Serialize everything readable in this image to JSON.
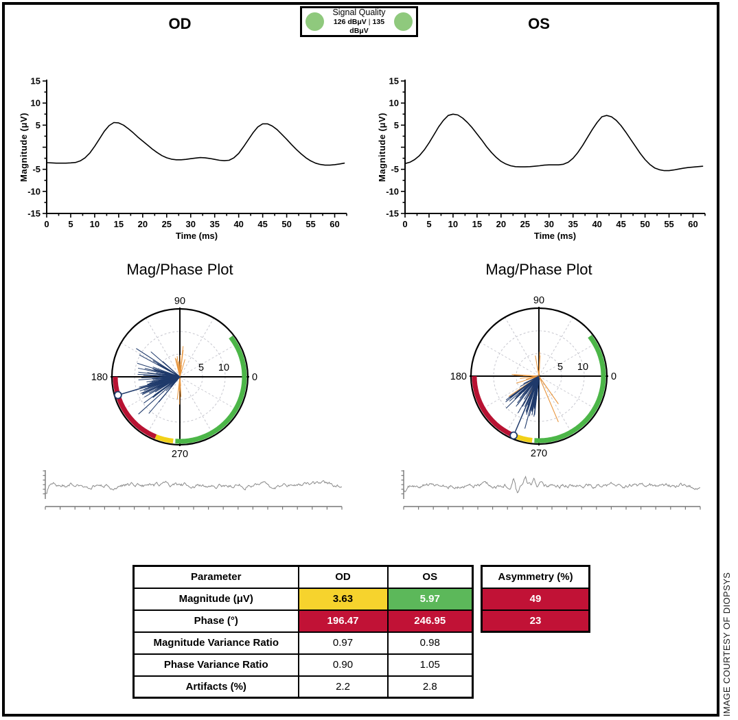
{
  "page": {
    "od_label": "OD",
    "os_label": "OS",
    "credit": "IMAGE COURTESY OF DIOPSYS"
  },
  "signal_quality": {
    "title": "Signal Quality",
    "od_value": "126 dBμV",
    "separator": "|",
    "os_value": "135 dBμV",
    "indicator_color": "#8fc97d"
  },
  "polar_titles": {
    "od": "Mag/Phase Plot",
    "os": "Mag/Phase Plot"
  },
  "colors": {
    "axis_black": "#000000",
    "navy_spike": "#1f3a6b",
    "orange_spike": "#e8953c",
    "arc_green": "#4cb648",
    "arc_red": "#b81232",
    "arc_yellow": "#f2d118",
    "grid_gray": "#c6c6ce",
    "noise_gray": "#8a8a8a",
    "noise_axis": "#777777",
    "cell_yellow": "#f6d32d",
    "cell_green": "#5cb85a",
    "cell_red": "#c11236"
  },
  "chart_data": [
    {
      "id": "od_waveform",
      "type": "line",
      "eye": "OD",
      "xlabel": "Time (ms)",
      "ylabel": "Magnitude (μV)",
      "xlim": [
        0,
        62.5
      ],
      "ylim": [
        -15,
        15
      ],
      "x_major_step": 5,
      "x_minor_step": 2.5,
      "y_major_step": 5,
      "y_minor_step": 2.5,
      "x_start": 0,
      "x_step": 1,
      "values": [
        -3.5,
        -3.55,
        -3.6,
        -3.6,
        -3.6,
        -3.55,
        -3.45,
        -3.1,
        -2.4,
        -1.3,
        0.2,
        1.9,
        3.6,
        4.9,
        5.6,
        5.5,
        5.0,
        4.2,
        3.3,
        2.3,
        1.4,
        0.5,
        -0.4,
        -1.2,
        -1.9,
        -2.4,
        -2.7,
        -2.85,
        -2.85,
        -2.75,
        -2.6,
        -2.45,
        -2.35,
        -2.4,
        -2.55,
        -2.75,
        -2.95,
        -3.05,
        -2.95,
        -2.4,
        -1.4,
        0.1,
        1.7,
        3.3,
        4.6,
        5.3,
        5.3,
        4.8,
        4.0,
        2.9,
        1.8,
        0.6,
        -0.5,
        -1.5,
        -2.4,
        -3.1,
        -3.6,
        -3.9,
        -4.05,
        -4.05,
        -3.95,
        -3.8,
        -3.6
      ]
    },
    {
      "id": "os_waveform",
      "type": "line",
      "eye": "OS",
      "xlabel": "Time (ms)",
      "ylabel": "Magnitude (μV)",
      "xlim": [
        0,
        62.5
      ],
      "ylim": [
        -15,
        15
      ],
      "x_major_step": 5,
      "x_minor_step": 2.5,
      "y_major_step": 5,
      "y_minor_step": 2.5,
      "x_start": 0,
      "x_step": 1,
      "values": [
        -3.7,
        -3.4,
        -2.8,
        -1.9,
        -0.6,
        1.0,
        2.8,
        4.6,
        6.1,
        7.2,
        7.5,
        7.3,
        6.6,
        5.6,
        4.4,
        3.0,
        1.6,
        0.1,
        -1.2,
        -2.3,
        -3.2,
        -3.8,
        -4.2,
        -4.4,
        -4.45,
        -4.45,
        -4.4,
        -4.3,
        -4.2,
        -4.05,
        -4.0,
        -4.0,
        -4.0,
        -3.85,
        -3.4,
        -2.5,
        -1.2,
        0.4,
        2.2,
        4.0,
        5.6,
        6.9,
        7.2,
        6.9,
        6.1,
        4.9,
        3.4,
        1.8,
        0.2,
        -1.4,
        -2.8,
        -3.9,
        -4.7,
        -5.1,
        -5.3,
        -5.3,
        -5.15,
        -4.95,
        -4.75,
        -4.6,
        -4.5,
        -4.4,
        -4.3
      ]
    },
    {
      "id": "od_polar",
      "type": "polar",
      "eye": "OD",
      "title": "Mag/Phase Plot",
      "rmax": 15,
      "radius_ticks": [
        5,
        10
      ],
      "angle_labels": {
        "right": "0",
        "top": "90",
        "left": "180",
        "bottom": "270"
      },
      "marker": {
        "angle_deg": 196.47,
        "radius": 15
      },
      "arcs": [
        {
          "color_key": "arc_red",
          "start_deg": 180,
          "end_deg": 248
        },
        {
          "color_key": "arc_yellow",
          "start_deg": 248,
          "end_deg": 266
        },
        {
          "color_key": "arc_green",
          "start_deg": 266,
          "end_deg": 398
        }
      ],
      "seed": 7,
      "blue_clusters": [
        {
          "mean": 190,
          "spread": 30,
          "count": 85,
          "rmin": 1.5,
          "rmax": 9.5
        },
        {
          "mean": 150,
          "spread": 15,
          "count": 8,
          "rmin": 4,
          "rmax": 11.5
        },
        {
          "mean": 215,
          "spread": 18,
          "count": 10,
          "rmin": 3,
          "rmax": 11
        }
      ],
      "orange_clusters": [
        {
          "mean": 88,
          "spread": 10,
          "count": 12,
          "rmin": 1.5,
          "rmax": 7
        },
        {
          "mean": 95,
          "spread": 25,
          "count": 6,
          "rmin": 1,
          "rmax": 4.5
        },
        {
          "mean": 270,
          "spread": 8,
          "count": 7,
          "rmin": 2,
          "rmax": 6.5
        }
      ],
      "blue_extras": [
        {
          "angle": 147,
          "r": 11.5
        },
        {
          "angle": 222,
          "r": 12.3
        }
      ],
      "orange_extras": []
    },
    {
      "id": "os_polar",
      "type": "polar",
      "eye": "OS",
      "title": "Mag/Phase Plot",
      "rmax": 15,
      "radius_ticks": [
        5,
        10
      ],
      "angle_labels": {
        "right": "0",
        "top": "90",
        "left": "180",
        "bottom": "270"
      },
      "marker": {
        "angle_deg": 246.95,
        "radius": 15
      },
      "arcs": [
        {
          "color_key": "arc_red",
          "start_deg": 180,
          "end_deg": 248
        },
        {
          "color_key": "arc_yellow",
          "start_deg": 248,
          "end_deg": 266
        },
        {
          "color_key": "arc_green",
          "start_deg": 266,
          "end_deg": 398
        }
      ],
      "seed": 13,
      "blue_clusters": [
        {
          "mean": 240,
          "spread": 25,
          "count": 90,
          "rmin": 1.5,
          "rmax": 9.5
        },
        {
          "mean": 215,
          "spread": 12,
          "count": 10,
          "rmin": 3,
          "rmax": 10.5
        },
        {
          "mean": 262,
          "spread": 10,
          "count": 8,
          "rmin": 3,
          "rmax": 8
        }
      ],
      "orange_clusters": [
        {
          "mean": 235,
          "spread": 50,
          "count": 22,
          "rmin": 1.5,
          "rmax": 9
        },
        {
          "mean": 92,
          "spread": 8,
          "count": 6,
          "rmin": 2,
          "rmax": 6
        },
        {
          "mean": 182,
          "spread": 6,
          "count": 4,
          "rmin": 3,
          "rmax": 7.5
        }
      ],
      "blue_extras": [
        {
          "angle": 255,
          "r": 12
        }
      ],
      "orange_extras": [
        {
          "angle": 293,
          "r": 11
        },
        {
          "angle": 305,
          "r": 7.5
        }
      ]
    },
    {
      "id": "od_noise",
      "type": "line",
      "role": "noise-strip",
      "seed": 3,
      "points": 400,
      "spikes": [
        {
          "pos": 0.004,
          "amp": 13
        }
      ]
    },
    {
      "id": "os_noise",
      "type": "line",
      "role": "noise-strip",
      "seed": 9,
      "points": 400,
      "spikes": [
        {
          "pos": 0.005,
          "amp": 9
        },
        {
          "pos": 0.37,
          "amp": -12
        },
        {
          "pos": 0.385,
          "amp": 13
        },
        {
          "pos": 0.41,
          "amp": -13
        },
        {
          "pos": 0.44,
          "amp": -9
        },
        {
          "pos": 0.465,
          "amp": -6
        }
      ]
    }
  ],
  "table": {
    "headers": [
      "Parameter",
      "OD",
      "OS"
    ],
    "asymmetry_header": "Asymmetry (%)",
    "rows": [
      {
        "parameter": "Magnitude (μV)",
        "od": "3.63",
        "os": "5.97",
        "od_bg": "yellow",
        "os_bg": "green",
        "asymmetry": "49",
        "asymmetry_bg": "red"
      },
      {
        "parameter": "Phase (°)",
        "od": "196.47",
        "os": "246.95",
        "od_bg": "red",
        "os_bg": "red",
        "asymmetry": "23",
        "asymmetry_bg": "red"
      },
      {
        "parameter": "Magnitude Variance Ratio",
        "od": "0.97",
        "os": "0.98"
      },
      {
        "parameter": "Phase Variance Ratio",
        "od": "0.90",
        "os": "1.05"
      },
      {
        "parameter": "Artifacts (%)",
        "od": "2.2",
        "os": "2.8"
      }
    ]
  }
}
